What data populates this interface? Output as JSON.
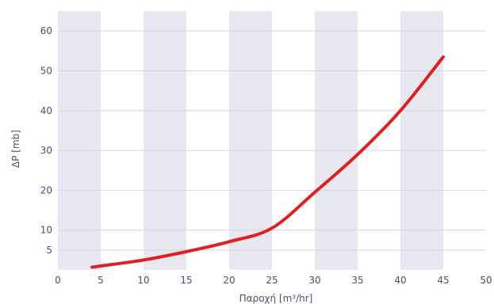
{
  "chart_data": {
    "type": "line",
    "title": "",
    "xlabel": "Παροχή [m³/hr]",
    "ylabel": "ΔP [mb]",
    "x_ticks": [
      0,
      5,
      10,
      15,
      20,
      25,
      30,
      35,
      40,
      45,
      50
    ],
    "y_ticks": [
      5,
      10,
      20,
      30,
      40,
      50,
      60
    ],
    "xlim": [
      0,
      50
    ],
    "ylim": [
      0,
      65
    ],
    "grid": true,
    "band_color": "#e8e8f1",
    "series": [
      {
        "color": "#e02020",
        "x": [
          4,
          5,
          10,
          15,
          20,
          25,
          30,
          35,
          40,
          45
        ],
        "y": [
          0.7,
          1.0,
          2.5,
          4.6,
          7.1,
          10.5,
          19.5,
          29.0,
          40.0,
          53.5
        ]
      }
    ]
  }
}
